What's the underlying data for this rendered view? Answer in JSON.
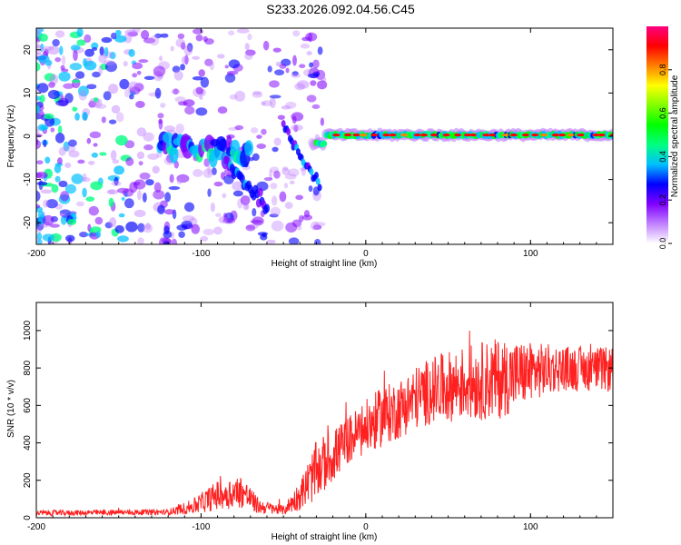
{
  "title": "S233.2026.092.04.56.C45",
  "chart_data": [
    {
      "type": "heatmap",
      "name": "spectrogram",
      "xlabel": "Height of straight line (km)",
      "ylabel": "Frequency (Hz)",
      "xlim": [
        -200,
        150
      ],
      "ylim": [
        -25,
        25
      ],
      "x_ticks": [
        -200,
        -100,
        0,
        100
      ],
      "y_ticks": [
        -20,
        -10,
        0,
        10,
        20
      ],
      "colorbar": {
        "label": "Normalized spectral amplitude",
        "range": [
          0,
          1
        ],
        "ticks": [
          "0.0",
          "0.2",
          "0.4",
          "0.6",
          "0.8"
        ],
        "colors": [
          "#ffffff",
          "#c080ff",
          "#8000ff",
          "#0000ff",
          "#00c0ff",
          "#00ff80",
          "#00ff00",
          "#80ff00",
          "#ffff00",
          "#ff8000",
          "#ff0000",
          "#ff0080"
        ]
      },
      "features": [
        {
          "x": 0,
          "y": 0.3,
          "amp": 0.9,
          "note": "steady carrier line near 0 Hz from -20 km to 150 km"
        },
        {
          "x": -90,
          "y": -2,
          "amp": 0.5,
          "note": "drifting line between -120 km and -70 km"
        },
        {
          "x": -30,
          "y": -12,
          "amp": 0.4,
          "note": "descending trace near -30 km"
        }
      ]
    },
    {
      "type": "line",
      "name": "snr",
      "xlabel": "Height of straight line (km)",
      "ylabel": "SNR (10 * v/v)",
      "xlim": [
        -200,
        150
      ],
      "ylim": [
        0,
        1150
      ],
      "x_ticks": [
        -200,
        -100,
        0,
        100
      ],
      "y_ticks": [
        0,
        200,
        400,
        600,
        800,
        1000
      ],
      "color": "#ff2020",
      "envelope": [
        {
          "x": -200,
          "y": 25,
          "spread": 15
        },
        {
          "x": -120,
          "y": 30,
          "spread": 15
        },
        {
          "x": -105,
          "y": 60,
          "spread": 40
        },
        {
          "x": -90,
          "y": 120,
          "spread": 80
        },
        {
          "x": -75,
          "y": 140,
          "spread": 90
        },
        {
          "x": -65,
          "y": 60,
          "spread": 40
        },
        {
          "x": -50,
          "y": 40,
          "spread": 25
        },
        {
          "x": -40,
          "y": 120,
          "spread": 80
        },
        {
          "x": -30,
          "y": 250,
          "spread": 160
        },
        {
          "x": -20,
          "y": 330,
          "spread": 140
        },
        {
          "x": -10,
          "y": 420,
          "spread": 130
        },
        {
          "x": 0,
          "y": 480,
          "spread": 150
        },
        {
          "x": 10,
          "y": 540,
          "spread": 160
        },
        {
          "x": 20,
          "y": 580,
          "spread": 160
        },
        {
          "x": 30,
          "y": 640,
          "spread": 170
        },
        {
          "x": 40,
          "y": 680,
          "spread": 180
        },
        {
          "x": 60,
          "y": 720,
          "spread": 200
        },
        {
          "x": 80,
          "y": 740,
          "spread": 220
        },
        {
          "x": 100,
          "y": 780,
          "spread": 160
        },
        {
          "x": 120,
          "y": 800,
          "spread": 120
        },
        {
          "x": 150,
          "y": 790,
          "spread": 120
        }
      ]
    }
  ]
}
